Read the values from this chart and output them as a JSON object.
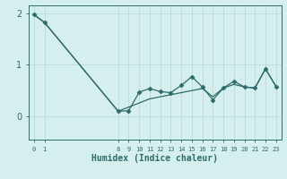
{
  "xlabel": "Humidex (Indice chaleur)",
  "background_color": "#d4efed",
  "line_color": "#2d6b6b",
  "marker_color": "#2d6b6b",
  "grid_color": "#b8dbd9",
  "x_values": [
    0,
    1,
    8,
    9,
    10,
    11,
    12,
    13,
    14,
    15,
    16,
    17,
    18,
    19,
    20,
    21,
    22,
    23
  ],
  "y_zigzag": [
    1.97,
    1.82,
    0.1,
    0.11,
    0.47,
    0.54,
    0.48,
    0.46,
    0.6,
    0.77,
    0.57,
    0.32,
    0.55,
    0.68,
    0.57,
    0.55,
    0.92,
    0.58
  ],
  "y_trend": [
    1.97,
    1.82,
    0.1,
    0.18,
    0.26,
    0.34,
    0.38,
    0.42,
    0.46,
    0.5,
    0.54,
    0.38,
    0.55,
    0.62,
    0.57,
    0.55,
    0.92,
    0.58
  ],
  "xlim": [
    -0.5,
    23.5
  ],
  "ylim": [
    -0.45,
    2.15
  ],
  "yticks": [
    0,
    1,
    2
  ],
  "xtick_positions": [
    0,
    1,
    8,
    9,
    10,
    11,
    12,
    13,
    14,
    15,
    16,
    17,
    18,
    19,
    20,
    21,
    22,
    23
  ],
  "font_color": "#2d6b6b",
  "axis_color": "#2d6b6b",
  "xlabel_fontsize": 7,
  "ytick_fontsize": 7,
  "xtick_fontsize": 5
}
